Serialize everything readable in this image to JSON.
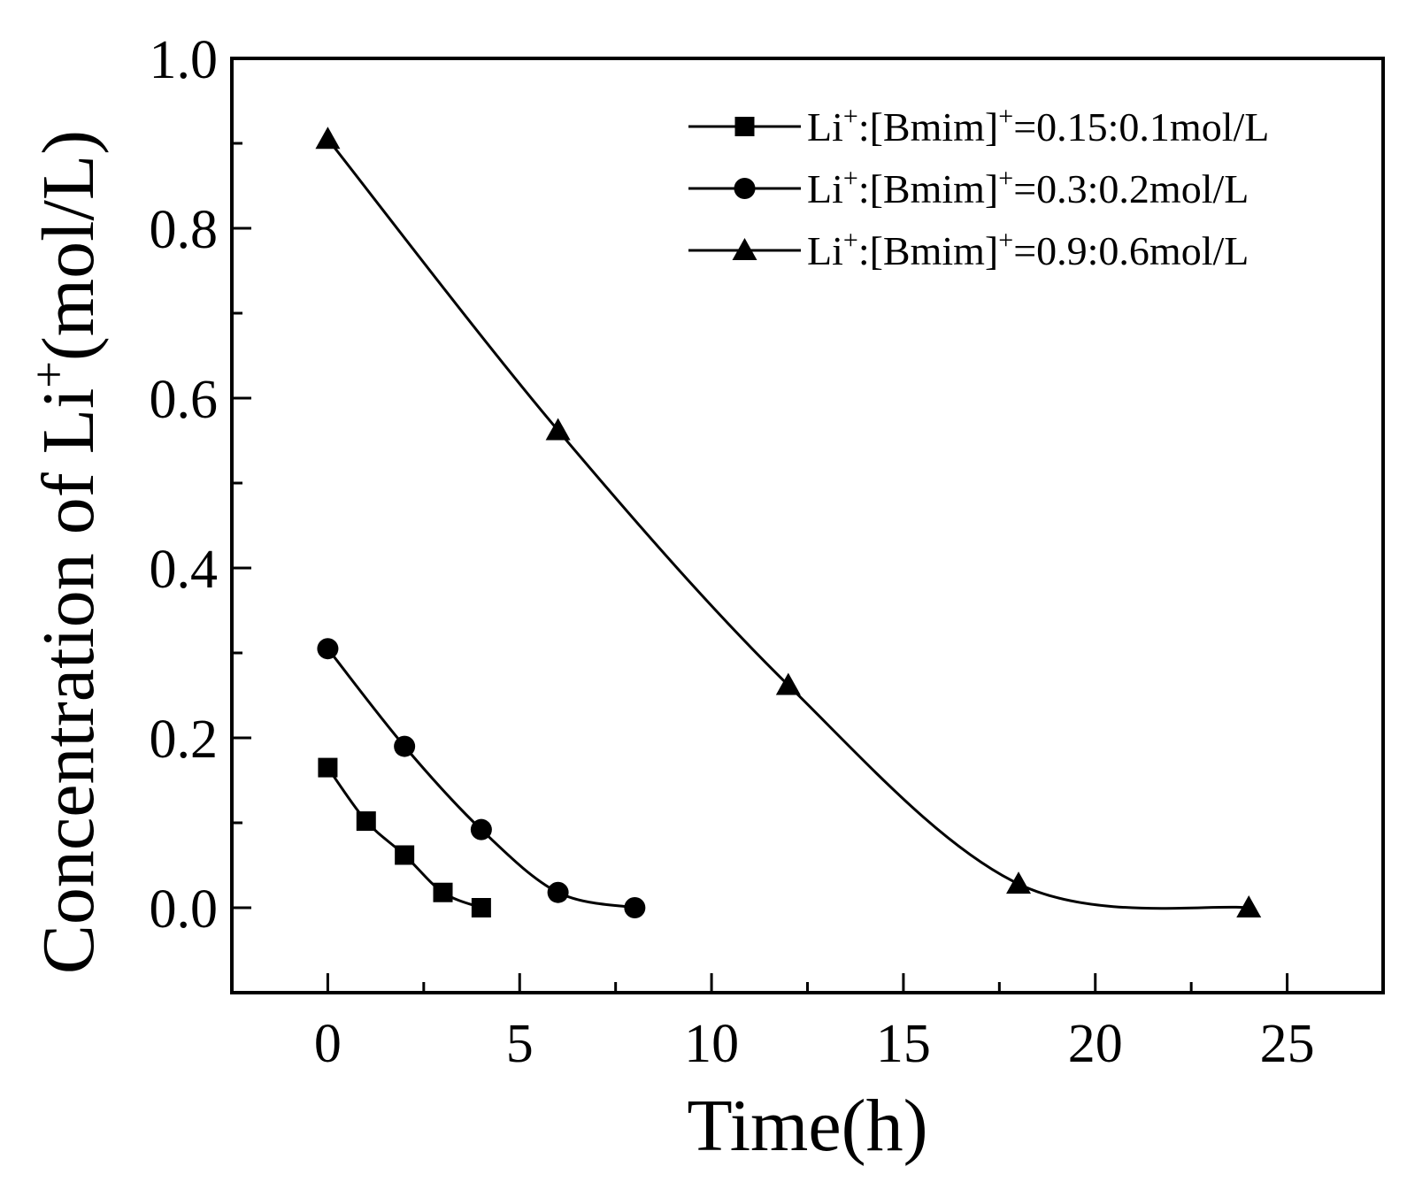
{
  "chart_data": {
    "type": "line",
    "title": "",
    "xlabel": "Time(h)",
    "ylabel": {
      "prefix": "Concentration of Li",
      "sup": "+",
      "suffix": "(mol/L)"
    },
    "xlim": [
      -2.5,
      27.5
    ],
    "ylim": [
      -0.1,
      1.0
    ],
    "x_ticks": [
      0,
      5,
      10,
      15,
      20,
      25
    ],
    "x_tick_labels": [
      "0",
      "5",
      "10",
      "15",
      "20",
      "25"
    ],
    "y_ticks": [
      0.0,
      0.2,
      0.4,
      0.6,
      0.8,
      1.0
    ],
    "y_tick_labels": [
      "0.0",
      "0.2",
      "0.4",
      "0.6",
      "0.8",
      "1.0"
    ],
    "grid": false,
    "legend_position": "top-right",
    "series": [
      {
        "name": "Li+:[Bmim]+=0.15:0.1mol/L",
        "label": {
          "a": "Li",
          "sup1": "+",
          "b": ":[Bmim]",
          "sup2": "+",
          "c": "=0.15:0.1mol/L"
        },
        "marker": "square",
        "x": [
          0,
          1,
          2,
          3,
          4
        ],
        "y": [
          0.165,
          0.102,
          0.062,
          0.018,
          0.0
        ]
      },
      {
        "name": "Li+:[Bmim]+=0.3:0.2mol/L",
        "label": {
          "a": "Li",
          "sup1": "+",
          "b": ":[Bmim]",
          "sup2": "+",
          "c": "=0.3:0.2mol/L"
        },
        "marker": "circle",
        "x": [
          0,
          2,
          4,
          6,
          8
        ],
        "y": [
          0.305,
          0.19,
          0.092,
          0.018,
          0.0
        ]
      },
      {
        "name": "Li+:[Bmim]+=0.9:0.6mol/L",
        "label": {
          "a": "Li",
          "sup1": "+",
          "b": ":[Bmim]",
          "sup2": "+",
          "c": "=0.9:0.6mol/L"
        },
        "marker": "triangle",
        "x": [
          0,
          6,
          12,
          18,
          24
        ],
        "y": [
          0.905,
          0.562,
          0.262,
          0.028,
          0.0
        ]
      }
    ]
  }
}
